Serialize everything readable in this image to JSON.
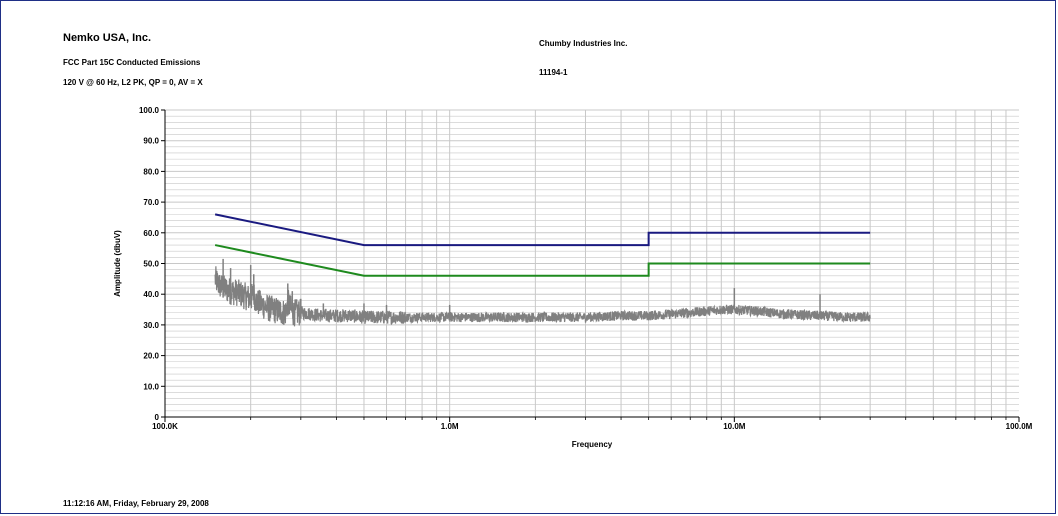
{
  "header": {
    "company": "Nemko USA, Inc.",
    "test": "FCC Part 15C Conducted Emissions",
    "conditions": "120 V @ 60 Hz, L2 PK, QP = 0, AV = X",
    "client": "Chumby Industries Inc.",
    "project": "11194-1"
  },
  "footer": {
    "timestamp": "11:12:16 AM, Friday, February 29, 2008"
  },
  "colors": {
    "frame": "#1f2f86",
    "qp_limit": "#1a1a80",
    "avg_limit": "#1e8a1e",
    "measurement": "#808080",
    "grid": "#c8c8c8"
  },
  "chart_data": {
    "type": "line",
    "title": "",
    "xlabel": "Frequency",
    "ylabel": "Amplitude (dbuV)",
    "xscale": "log",
    "xlim": [
      100000,
      100000000
    ],
    "ylim": [
      0,
      100
    ],
    "x_tick_labels": [
      {
        "value": 100000,
        "label": "100.0K"
      },
      {
        "value": 1000000,
        "label": "1.0M"
      },
      {
        "value": 10000000,
        "label": "10.0M"
      },
      {
        "value": 100000000,
        "label": "100.0M"
      }
    ],
    "y_tick_labels": [
      {
        "value": 0,
        "label": "0"
      },
      {
        "value": 10,
        "label": "10.0"
      },
      {
        "value": 20,
        "label": "20.0"
      },
      {
        "value": 30,
        "label": "30.0"
      },
      {
        "value": 40,
        "label": "40.0"
      },
      {
        "value": 50,
        "label": "50.0"
      },
      {
        "value": 60,
        "label": "60.0"
      },
      {
        "value": 70,
        "label": "70.0"
      },
      {
        "value": 80,
        "label": "80.0"
      },
      {
        "value": 90,
        "label": "90.0"
      },
      {
        "value": 100,
        "label": "100.0"
      }
    ],
    "grid": true,
    "series": [
      {
        "key": "qp_limit",
        "x": [
          150000,
          500000,
          500000,
          5000000,
          5000000,
          30000000
        ],
        "y": [
          66,
          56,
          56,
          56,
          60,
          60
        ]
      },
      {
        "key": "avg_limit",
        "x": [
          150000,
          500000,
          500000,
          5000000,
          5000000,
          30000000
        ],
        "y": [
          56,
          46,
          46,
          46,
          50,
          50
        ]
      },
      {
        "key": "measurement",
        "style": "noisy",
        "x": [
          150000,
          155000,
          160000,
          170000,
          180000,
          190000,
          200000,
          205000,
          210000,
          230000,
          250000,
          265000,
          270000,
          280000,
          300000,
          330000,
          360000,
          400000,
          450000,
          500000,
          600000,
          700000,
          800000,
          1000000,
          1300000,
          1600000,
          2000000,
          2500000,
          3000000,
          4000000,
          5000000,
          6000000,
          7000000,
          8000000,
          9000000,
          10000000,
          12000000,
          15000000,
          20000000,
          25000000,
          30000000
        ],
        "y": [
          45,
          43,
          42,
          41,
          40.5,
          39.5,
          38.5,
          40,
          37.5,
          35.5,
          34.5,
          34,
          37.5,
          34,
          34,
          33.5,
          33,
          33,
          33,
          32.5,
          32.5,
          32.5,
          32.5,
          32.5,
          32.5,
          32.5,
          32.5,
          32.5,
          32.5,
          33,
          33,
          33.5,
          34,
          34.5,
          35,
          35,
          34.5,
          33.5,
          33,
          32.5,
          32.5
        ],
        "spikes": [
          {
            "x": 160000,
            "y": 51.5
          },
          {
            "x": 170000,
            "y": 48.5
          },
          {
            "x": 200000,
            "y": 49.5
          },
          {
            "x": 205000,
            "y": 46.5
          },
          {
            "x": 270000,
            "y": 43.5
          },
          {
            "x": 280000,
            "y": 41
          },
          {
            "x": 300000,
            "y": 38.5
          },
          {
            "x": 360000,
            "y": 37
          },
          {
            "x": 500000,
            "y": 37
          },
          {
            "x": 600000,
            "y": 36.5
          },
          {
            "x": 1000000,
            "y": 36.5
          },
          {
            "x": 10000000,
            "y": 42
          },
          {
            "x": 20000000,
            "y": 40
          }
        ]
      }
    ]
  }
}
